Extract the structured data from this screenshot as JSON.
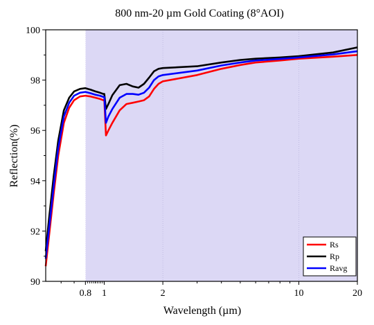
{
  "chart_data": {
    "type": "line",
    "title": "800 nm-20 µm Gold Coating (8°AOI)",
    "xlabel": "Wavelength (µm)",
    "ylabel": "Reflection(%)",
    "x_scale": "log",
    "xlim": [
      0.5,
      20
    ],
    "ylim": [
      90,
      100
    ],
    "x_ticks": [
      {
        "value": 0.8,
        "label": "0.8"
      },
      {
        "value": 1,
        "label": "1"
      },
      {
        "value": 2,
        "label": "2"
      },
      {
        "value": 10,
        "label": "10"
      },
      {
        "value": 20,
        "label": "20"
      }
    ],
    "y_ticks": [
      {
        "value": 90,
        "label": "90"
      },
      {
        "value": 92,
        "label": "92"
      },
      {
        "value": 94,
        "label": "94"
      },
      {
        "value": 96,
        "label": "96"
      },
      {
        "value": 98,
        "label": "98"
      },
      {
        "value": 100,
        "label": "100"
      }
    ],
    "shaded_region": {
      "x_start": 0.8,
      "x_end": 20,
      "color": "#dcd8f5"
    },
    "reference_line": {
      "x": 0.8,
      "style": "dotted"
    },
    "grid": "vertical dotted at 2 and 10",
    "legend_position": "bottom-right",
    "series": [
      {
        "name": "Rs",
        "color": "#ff0000",
        "x": [
          0.5,
          0.52,
          0.55,
          0.58,
          0.62,
          0.66,
          0.7,
          0.75,
          0.8,
          0.85,
          0.9,
          0.95,
          0.99,
          1.0,
          1.02,
          1.05,
          1.1,
          1.2,
          1.3,
          1.4,
          1.5,
          1.6,
          1.7,
          1.8,
          1.9,
          2.0,
          3.0,
          4.0,
          5.0,
          6.0,
          8.0,
          10.0,
          15.0,
          20.0
        ],
        "y": [
          90.6,
          91.8,
          93.5,
          95.0,
          96.3,
          96.9,
          97.2,
          97.35,
          97.38,
          97.35,
          97.3,
          97.25,
          97.2,
          97.2,
          95.8,
          96.0,
          96.3,
          96.8,
          97.05,
          97.1,
          97.15,
          97.2,
          97.35,
          97.65,
          97.85,
          97.95,
          98.2,
          98.45,
          98.6,
          98.7,
          98.78,
          98.85,
          98.93,
          99.0
        ]
      },
      {
        "name": "Rp",
        "color": "#000000",
        "x": [
          0.5,
          0.52,
          0.55,
          0.58,
          0.62,
          0.66,
          0.7,
          0.75,
          0.8,
          0.85,
          0.9,
          0.95,
          0.99,
          1.0,
          1.02,
          1.05,
          1.1,
          1.2,
          1.3,
          1.4,
          1.5,
          1.6,
          1.7,
          1.8,
          1.9,
          2.0,
          3.0,
          4.0,
          5.0,
          6.0,
          8.0,
          10.0,
          15.0,
          20.0
        ],
        "y": [
          91.2,
          92.5,
          94.2,
          95.6,
          96.8,
          97.3,
          97.55,
          97.65,
          97.68,
          97.62,
          97.55,
          97.5,
          97.45,
          97.45,
          96.85,
          97.05,
          97.4,
          97.8,
          97.85,
          97.75,
          97.7,
          97.85,
          98.1,
          98.35,
          98.45,
          98.48,
          98.55,
          98.7,
          98.8,
          98.85,
          98.9,
          98.95,
          99.1,
          99.3
        ]
      },
      {
        "name": "Ravg",
        "color": "#0000ff",
        "x": [
          0.5,
          0.52,
          0.55,
          0.58,
          0.62,
          0.66,
          0.7,
          0.75,
          0.8,
          0.85,
          0.9,
          0.95,
          0.99,
          1.0,
          1.02,
          1.05,
          1.1,
          1.2,
          1.3,
          1.4,
          1.5,
          1.6,
          1.7,
          1.8,
          1.9,
          2.0,
          3.0,
          4.0,
          5.0,
          6.0,
          8.0,
          10.0,
          15.0,
          20.0
        ],
        "y": [
          90.9,
          92.1,
          93.8,
          95.3,
          96.55,
          97.1,
          97.38,
          97.5,
          97.53,
          97.48,
          97.42,
          97.38,
          97.33,
          97.33,
          96.3,
          96.55,
          96.85,
          97.3,
          97.45,
          97.45,
          97.42,
          97.5,
          97.7,
          98.0,
          98.15,
          98.2,
          98.38,
          98.58,
          98.7,
          98.78,
          98.84,
          98.9,
          99.02,
          99.15
        ]
      }
    ]
  }
}
